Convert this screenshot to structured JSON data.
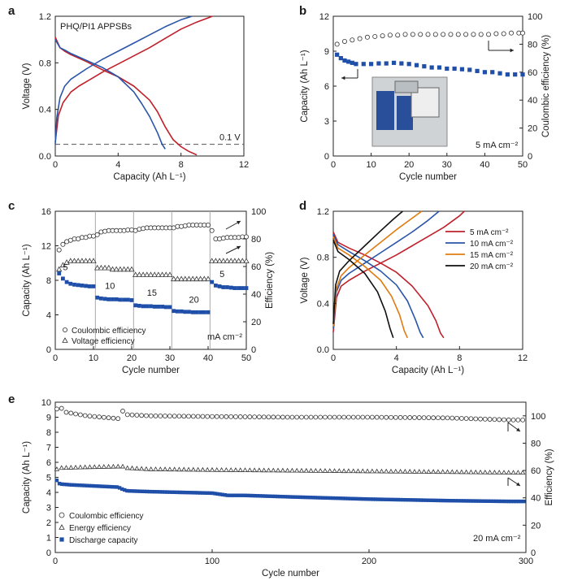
{
  "chart_data": [
    {
      "panel": "a",
      "type": "line",
      "annotation": "PHQ/PI1 APPSBs",
      "reference_line": {
        "y": 0.1,
        "label": "0.1 V",
        "style": "dashed"
      },
      "xlabel": "Capacity (Ah L⁻¹)",
      "ylabel": "Voltage (V)",
      "xlim": [
        0,
        12
      ],
      "ylim": [
        0,
        1.2
      ],
      "xticks": [
        "0",
        "4",
        "8",
        "12"
      ],
      "yticks": [
        "0.0",
        "0.4",
        "0.8",
        "1.2"
      ],
      "series": [
        {
          "color": "#c0202a",
          "role": "charge",
          "x": [
            0,
            0.2,
            0.5,
            1.0,
            1.5,
            2.0,
            3.0,
            4.0,
            5.0,
            6.0,
            7.0,
            8.0,
            9.0,
            10.0
          ],
          "y": [
            0.12,
            0.35,
            0.46,
            0.55,
            0.6,
            0.64,
            0.72,
            0.79,
            0.86,
            0.93,
            1.01,
            1.09,
            1.15,
            1.2
          ]
        },
        {
          "color": "#c0202a",
          "role": "discharge",
          "x": [
            0,
            0.3,
            0.6,
            1.0,
            2.0,
            3.0,
            4.0,
            5.0,
            6.0,
            6.5,
            7.0,
            7.5,
            8.0,
            8.5,
            9.0
          ],
          "y": [
            1.02,
            0.93,
            0.9,
            0.87,
            0.81,
            0.74,
            0.68,
            0.6,
            0.48,
            0.38,
            0.25,
            0.14,
            0.08,
            0.04,
            0.01
          ]
        },
        {
          "color": "#2a55a8",
          "role": "charge",
          "x": [
            0,
            0.1,
            0.3,
            0.6,
            1.0,
            2.0,
            3.0,
            4.0,
            5.0,
            6.0,
            7.0,
            8.0,
            8.7
          ],
          "y": [
            0.1,
            0.33,
            0.5,
            0.6,
            0.66,
            0.75,
            0.83,
            0.9,
            0.97,
            1.04,
            1.11,
            1.17,
            1.2
          ]
        },
        {
          "color": "#2a55a8",
          "role": "discharge",
          "x": [
            0,
            0.3,
            0.6,
            1.0,
            2.0,
            3.0,
            4.0,
            5.0,
            5.5,
            6.0,
            6.5,
            6.8,
            7.0
          ],
          "y": [
            1.0,
            0.93,
            0.91,
            0.88,
            0.82,
            0.76,
            0.68,
            0.55,
            0.45,
            0.34,
            0.2,
            0.1,
            0.06
          ]
        }
      ]
    },
    {
      "panel": "b",
      "type": "scatter",
      "xlabel": "Cycle number",
      "ylabel": "Capacity (Ah L⁻¹)",
      "y2label": "Coulombic efficiency (%)",
      "xlim": [
        0,
        50
      ],
      "ylim": [
        0,
        12
      ],
      "y2lim": [
        0,
        100
      ],
      "xticks": [
        "0",
        "10",
        "20",
        "30",
        "40",
        "50"
      ],
      "yticks": [
        "0",
        "3",
        "6",
        "9",
        "12"
      ],
      "y2ticks": [
        "0",
        "20",
        "40",
        "60",
        "80",
        "100"
      ],
      "annotation": "5 mA cm⁻²",
      "inset": "photograph of flow battery setup",
      "series": [
        {
          "marker": "open-circle",
          "axis": "right",
          "x": [
            1,
            3,
            5,
            7,
            9,
            11,
            13,
            15,
            17,
            19,
            21,
            23,
            25,
            27,
            29,
            31,
            33,
            35,
            37,
            39,
            41,
            43,
            45,
            47,
            49,
            50
          ],
          "y": [
            80,
            82,
            83,
            84,
            85,
            85.5,
            86,
            86.5,
            86.5,
            87,
            87,
            87,
            87,
            87,
            87,
            87,
            87,
            87,
            87,
            87,
            87,
            87.5,
            87.5,
            88,
            88,
            88
          ]
        },
        {
          "marker": "filled-square",
          "axis": "left",
          "x": [
            1,
            2,
            3,
            4,
            5,
            6,
            8,
            10,
            12,
            14,
            16,
            18,
            20,
            22,
            24,
            26,
            28,
            30,
            32,
            34,
            36,
            38,
            40,
            42,
            44,
            46,
            48,
            50
          ],
          "y": [
            8.7,
            8.4,
            8.2,
            8.1,
            8.0,
            7.9,
            7.9,
            7.9,
            7.95,
            7.95,
            8.0,
            7.95,
            7.9,
            7.8,
            7.7,
            7.6,
            7.6,
            7.5,
            7.5,
            7.45,
            7.4,
            7.3,
            7.2,
            7.2,
            7.1,
            7.0,
            7.0,
            7.0
          ]
        }
      ]
    },
    {
      "panel": "c",
      "type": "scatter",
      "xlabel": "Cycle number",
      "ylabel": "Capacity (Ah L⁻¹)",
      "y2label": "Efficiency (%)",
      "xlim": [
        0,
        50
      ],
      "ylim": [
        0,
        16
      ],
      "y2lim": [
        0,
        100
      ],
      "xticks": [
        "0",
        "10",
        "20",
        "30",
        "40",
        "50"
      ],
      "yticks": [
        "0",
        "4",
        "8",
        "12",
        "16"
      ],
      "y2ticks": [
        "0",
        "20",
        "40",
        "60",
        "80",
        "100"
      ],
      "rate_labels": [
        "5",
        "10",
        "15",
        "20",
        "5"
      ],
      "legend": [
        "Coulombic efficiency",
        "Voltage efficiency"
      ],
      "annotation": "mA cm⁻²",
      "segments": [
        {
          "start": 1,
          "end": 10,
          "capacity": [
            8.8,
            8.2,
            7.8,
            7.6,
            7.5,
            7.45,
            7.4,
            7.35,
            7.3,
            7.3
          ],
          "ce": [
            72,
            76,
            78,
            79,
            80,
            80,
            81,
            81,
            82,
            82
          ],
          "ve": [
            58,
            61,
            63,
            64,
            64,
            64,
            64,
            64,
            64,
            64
          ]
        },
        {
          "start": 11,
          "end": 20,
          "capacity": [
            6.0,
            5.9,
            5.85,
            5.8,
            5.8,
            5.8,
            5.75,
            5.75,
            5.75,
            5.7
          ],
          "ce": [
            83,
            85,
            85.5,
            86,
            86,
            86,
            86,
            86,
            86.5,
            86.5
          ],
          "ve": [
            59,
            59,
            59,
            59,
            58,
            58,
            58,
            58,
            58,
            58
          ]
        },
        {
          "start": 21,
          "end": 30,
          "capacity": [
            5.1,
            5.05,
            5.0,
            5.0,
            5.0,
            4.95,
            4.95,
            4.95,
            4.9,
            4.9
          ],
          "ce": [
            86,
            87,
            87.5,
            88,
            88,
            88,
            88,
            88,
            88,
            88
          ],
          "ve": [
            54,
            54,
            54,
            54,
            54,
            54,
            54,
            54,
            54,
            54
          ]
        },
        {
          "start": 31,
          "end": 40,
          "capacity": [
            4.45,
            4.4,
            4.4,
            4.35,
            4.35,
            4.3,
            4.3,
            4.3,
            4.3,
            4.3
          ],
          "ce": [
            88,
            89,
            89,
            89.5,
            90,
            90,
            90,
            90,
            90,
            90
          ],
          "ve": [
            51,
            51,
            51,
            51,
            51,
            51,
            51,
            51,
            51,
            51
          ]
        },
        {
          "start": 41,
          "end": 50,
          "capacity": [
            7.8,
            7.4,
            7.3,
            7.2,
            7.2,
            7.15,
            7.1,
            7.1,
            7.1,
            7.1
          ],
          "ce": [
            86,
            80,
            80,
            80.5,
            81,
            81,
            81,
            81,
            81.5,
            81.5
          ],
          "ve": [
            64,
            64,
            64,
            64,
            64,
            64,
            64,
            64,
            64,
            64
          ]
        }
      ]
    },
    {
      "panel": "d",
      "type": "line",
      "xlabel": "Capacity (Ah L⁻¹)",
      "ylabel": "Voltage (V)",
      "xlim": [
        0,
        12
      ],
      "ylim": [
        0,
        1.2
      ],
      "xticks": [
        "0",
        "4",
        "8",
        "12"
      ],
      "yticks": [
        "0.0",
        "0.4",
        "0.8",
        "1.2"
      ],
      "legend_position": "top-right",
      "series": [
        {
          "name": "5 mA cm⁻²",
          "color": "#c0202a",
          "charge": {
            "x": [
              0,
              0.2,
              0.5,
              1,
              2,
              3,
              4,
              5,
              6,
              7,
              8,
              8.3
            ],
            "y": [
              0.15,
              0.45,
              0.55,
              0.6,
              0.68,
              0.75,
              0.82,
              0.9,
              0.98,
              1.06,
              1.16,
              1.2
            ]
          },
          "discharge": {
            "x": [
              0,
              0.3,
              1,
              2,
              3,
              4,
              5,
              6,
              6.5,
              6.8,
              7.0
            ],
            "y": [
              1.02,
              0.93,
              0.88,
              0.82,
              0.75,
              0.67,
              0.55,
              0.38,
              0.25,
              0.14,
              0.1
            ]
          }
        },
        {
          "name": "10 mA cm⁻²",
          "color": "#2a55a8",
          "charge": {
            "x": [
              0,
              0.2,
              0.5,
              1,
              2,
              3,
              4,
              5,
              6,
              6.7
            ],
            "y": [
              0.18,
              0.5,
              0.6,
              0.66,
              0.75,
              0.84,
              0.93,
              1.02,
              1.12,
              1.2
            ]
          },
          "discharge": {
            "x": [
              0,
              0.3,
              1,
              2,
              3,
              4,
              4.7,
              5.2,
              5.5,
              5.7
            ],
            "y": [
              1.0,
              0.91,
              0.85,
              0.77,
              0.68,
              0.56,
              0.42,
              0.26,
              0.15,
              0.1
            ]
          }
        },
        {
          "name": "15 mA cm⁻²",
          "color": "#e07b12",
          "charge": {
            "x": [
              0,
              0.2,
              0.5,
              1,
              2,
              3,
              4,
              5,
              5.6
            ],
            "y": [
              0.2,
              0.53,
              0.64,
              0.71,
              0.82,
              0.93,
              1.04,
              1.14,
              1.2
            ]
          },
          "discharge": {
            "x": [
              0,
              0.3,
              1,
              2,
              3,
              3.7,
              4.2,
              4.5,
              4.7
            ],
            "y": [
              0.98,
              0.88,
              0.82,
              0.72,
              0.6,
              0.46,
              0.3,
              0.16,
              0.1
            ]
          }
        },
        {
          "name": "20 mA cm⁻²",
          "color": "#111111",
          "charge": {
            "x": [
              0,
              0.15,
              0.4,
              1,
              2,
              3,
              3.8,
              4.4
            ],
            "y": [
              0.22,
              0.56,
              0.68,
              0.77,
              0.9,
              1.03,
              1.13,
              1.2
            ]
          },
          "discharge": {
            "x": [
              0,
              0.3,
              1,
              2,
              2.8,
              3.3,
              3.6,
              3.8
            ],
            "y": [
              0.95,
              0.85,
              0.78,
              0.66,
              0.5,
              0.33,
              0.18,
              0.1
            ]
          }
        }
      ]
    },
    {
      "panel": "e",
      "type": "scatter",
      "xlabel": "Cycle number",
      "ylabel": "Capacity (Ah L⁻¹)",
      "y2label": "Efficiency (%)",
      "xlim": [
        0,
        300
      ],
      "ylim": [
        0,
        10
      ],
      "y2lim": [
        0,
        110
      ],
      "xticks": [
        "0",
        "100",
        "200",
        "300"
      ],
      "yticks": [
        "0",
        "1",
        "2",
        "3",
        "4",
        "5",
        "6",
        "7",
        "8",
        "9",
        "10"
      ],
      "y2ticks": [
        "0",
        "20",
        "40",
        "60",
        "80",
        "100"
      ],
      "legend": [
        "Coulombic efficiency",
        "Energy efficiency",
        "Discharge capacity"
      ],
      "annotation": "20 mA cm⁻²",
      "series": [
        {
          "name": "Coulombic efficiency",
          "marker": "open-circle",
          "axis": "right",
          "x": [
            1,
            3,
            5,
            20,
            40,
            42,
            44,
            60,
            100,
            150,
            200,
            250,
            290,
            300
          ],
          "y": [
            105,
            108,
            103,
            100,
            98,
            106,
            101,
            100,
            99.5,
            99,
            99,
            98.5,
            97,
            97
          ]
        },
        {
          "name": "Energy efficiency",
          "marker": "open-triangle",
          "axis": "right",
          "x": [
            1,
            3,
            5,
            20,
            40,
            42,
            44,
            60,
            100,
            150,
            200,
            250,
            290,
            300
          ],
          "y": [
            61,
            62,
            62,
            62.5,
            63,
            64,
            62,
            61,
            60.5,
            60,
            59.5,
            59,
            58.5,
            58.5
          ]
        },
        {
          "name": "Discharge capacity",
          "marker": "filled-square",
          "axis": "left",
          "x": [
            1,
            2,
            4,
            10,
            20,
            30,
            40,
            43,
            46,
            60,
            80,
            100,
            110,
            120,
            150,
            200,
            250,
            290,
            300
          ],
          "y": [
            4.8,
            4.6,
            4.55,
            4.5,
            4.45,
            4.4,
            4.35,
            4.2,
            4.1,
            4.05,
            4.0,
            3.95,
            3.8,
            3.8,
            3.7,
            3.55,
            3.45,
            3.4,
            3.4
          ]
        }
      ]
    }
  ]
}
